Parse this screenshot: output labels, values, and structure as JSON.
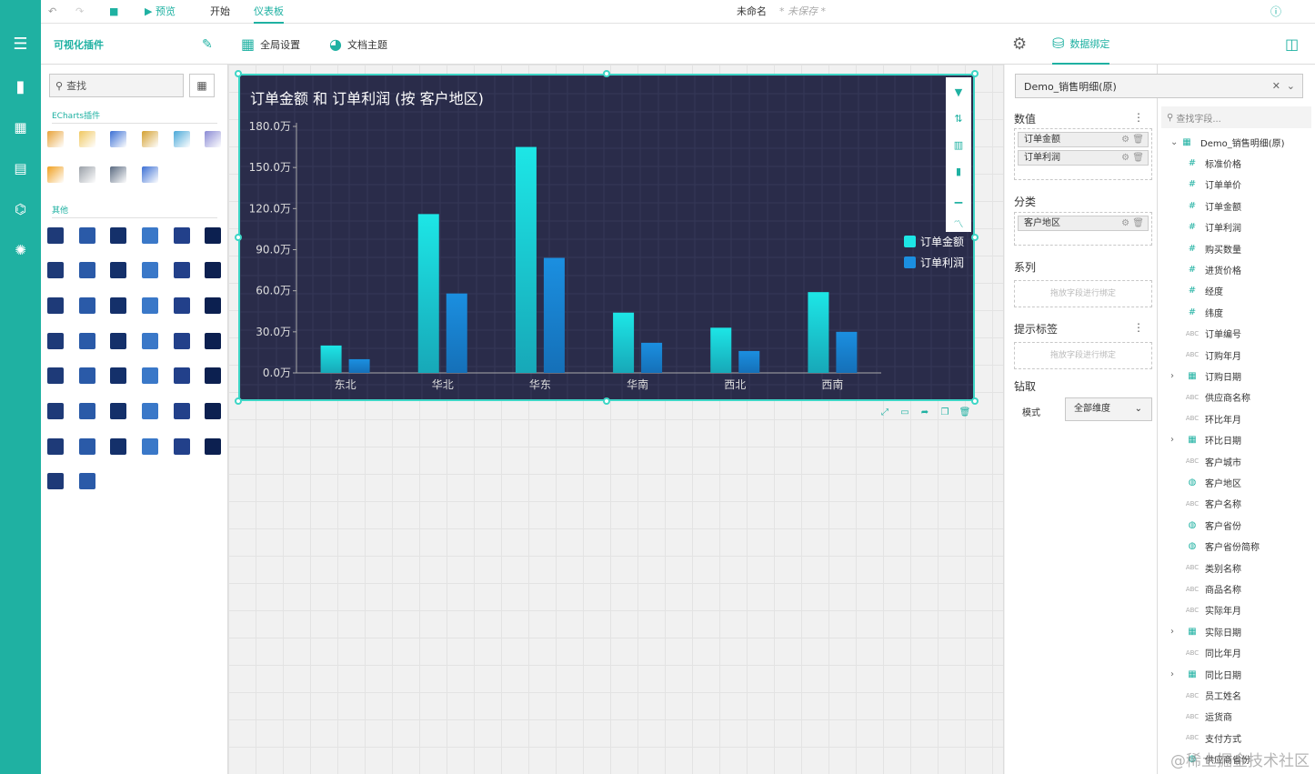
{
  "topbar": {
    "undo_icon": "undo-icon",
    "redo_icon": "redo-icon",
    "save_icon": "save-icon",
    "preview": "预览",
    "start": "开始",
    "dashboard": "仪表板",
    "doc_name": "未命名",
    "unsaved": "* 未保存 *",
    "help_icon": "help-icon"
  },
  "toolbar": {
    "plugins": "可视化插件",
    "global_settings": "全局设置",
    "doc_theme": "文档主题",
    "data_binding": "数据绑定"
  },
  "left": {
    "search_placeholder": "查找",
    "echarts_section": "ECharts插件",
    "other_section": "其他"
  },
  "chart": {
    "title": "订单金额 和 订单利润 (按 客户地区)"
  },
  "chart_data": {
    "type": "bar",
    "title": "订单金额 和 订单利润 (按 客户地区)",
    "categories": [
      "东北",
      "华北",
      "华东",
      "华南",
      "西北",
      "西南"
    ],
    "series": [
      {
        "name": "订单金额",
        "values": [
          20,
          116,
          165,
          44,
          33,
          59
        ],
        "color": "#1de6e6"
      },
      {
        "name": "订单利润",
        "values": [
          10,
          58,
          84,
          22,
          16,
          30
        ],
        "color": "#1b8fe0"
      }
    ],
    "yticks": [
      "0.0万",
      "30.0万",
      "60.0万",
      "90.0万",
      "120.0万",
      "150.0万",
      "180.0万"
    ],
    "ylim": [
      0,
      180
    ],
    "unit": "万",
    "legend": "right"
  },
  "binding": {
    "dataset": "Demo_销售明细(原)",
    "values_label": "数值",
    "values": [
      "订单金额",
      "订单利润"
    ],
    "category_label": "分类",
    "categories": [
      "客户地区"
    ],
    "series_label": "系列",
    "series_placeholder": "拖放字段进行绑定",
    "tooltip_label": "提示标签",
    "tooltip_placeholder": "拖放字段进行绑定",
    "drill_label": "钻取",
    "mode_label": "模式",
    "mode_value": "全部维度"
  },
  "fields": {
    "search_placeholder": "查找字段...",
    "root": "Demo_销售明细(原)",
    "items": [
      {
        "icon": "#",
        "name": "标准价格"
      },
      {
        "icon": "#",
        "name": "订单单价"
      },
      {
        "icon": "#",
        "name": "订单金额"
      },
      {
        "icon": "#",
        "name": "订单利润"
      },
      {
        "icon": "#",
        "name": "购买数量"
      },
      {
        "icon": "#",
        "name": "进货价格"
      },
      {
        "icon": "#",
        "name": "经度"
      },
      {
        "icon": "#",
        "name": "纬度"
      },
      {
        "icon": "ABC",
        "name": "订单编号"
      },
      {
        "icon": "ABC",
        "name": "订购年月"
      },
      {
        "icon": "date",
        "name": "订购日期",
        "expand": true
      },
      {
        "icon": "ABC",
        "name": "供应商名称"
      },
      {
        "icon": "ABC",
        "name": "环比年月"
      },
      {
        "icon": "date",
        "name": "环比日期",
        "expand": true
      },
      {
        "icon": "ABC",
        "name": "客户城市"
      },
      {
        "icon": "geo",
        "name": "客户地区"
      },
      {
        "icon": "ABC",
        "name": "客户名称"
      },
      {
        "icon": "geo",
        "name": "客户省份"
      },
      {
        "icon": "geo",
        "name": "客户省份简称"
      },
      {
        "icon": "ABC",
        "name": "类别名称"
      },
      {
        "icon": "ABC",
        "name": "商品名称"
      },
      {
        "icon": "ABC",
        "name": "实际年月"
      },
      {
        "icon": "date",
        "name": "实际日期",
        "expand": true
      },
      {
        "icon": "ABC",
        "name": "同比年月"
      },
      {
        "icon": "date",
        "name": "同比日期",
        "expand": true
      },
      {
        "icon": "ABC",
        "name": "员工姓名"
      },
      {
        "icon": "ABC",
        "name": "运货商"
      },
      {
        "icon": "ABC",
        "name": "支付方式"
      },
      {
        "icon": "geo",
        "name": "供应商省份"
      }
    ]
  },
  "watermark": "@稀土掘金技术社区"
}
